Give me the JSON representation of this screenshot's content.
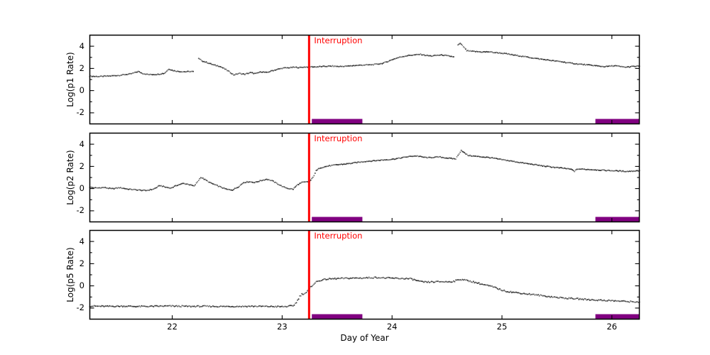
{
  "figure": {
    "xlabel": "Day of Year",
    "xlim": [
      21.25,
      26.25
    ],
    "ylim": [
      -3,
      5
    ],
    "x_ticks": [
      22,
      23,
      24,
      25,
      26
    ],
    "y_major_ticks": [
      -2,
      0,
      2,
      4
    ],
    "y_minor_ticks": [
      -1,
      1,
      3
    ],
    "interruption": {
      "label": "Interruption",
      "day": 23.245
    },
    "bars": [
      [
        23.27,
        23.73
      ],
      [
        25.85,
        26.25
      ]
    ],
    "colors": {
      "data": "#2b2b2b",
      "interruption": "#ff0000",
      "bar": "#800080",
      "frame": "#000000",
      "background": "#ffffff"
    }
  },
  "chart_data": [
    {
      "type": "scatter",
      "title": "",
      "xlabel": "Day of Year",
      "ylabel": "Log(p1 Rate)",
      "xlim": [
        21.25,
        26.25
      ],
      "ylim": [
        -3,
        5
      ],
      "grid": false,
      "legend": null,
      "annotations": [
        "Interruption line at day 23.245",
        "purple data-gap bars 23.27-23.73 and 25.85-26.25"
      ],
      "noise": 0.04,
      "segments": [
        [
          [
            21.25,
            1.3
          ],
          [
            21.33,
            1.27
          ],
          [
            21.42,
            1.31
          ],
          [
            21.52,
            1.38
          ],
          [
            21.62,
            1.5
          ],
          [
            21.69,
            1.72
          ],
          [
            21.73,
            1.55
          ],
          [
            21.79,
            1.44
          ],
          [
            21.87,
            1.47
          ],
          [
            21.93,
            1.57
          ],
          [
            21.97,
            1.95
          ],
          [
            22.01,
            1.8
          ],
          [
            22.06,
            1.72
          ],
          [
            22.12,
            1.7
          ],
          [
            22.19,
            1.73
          ]
        ],
        [
          [
            22.24,
            2.88
          ],
          [
            22.28,
            2.65
          ],
          [
            22.33,
            2.48
          ],
          [
            22.38,
            2.3
          ],
          [
            22.43,
            2.2
          ],
          [
            22.47,
            2.0
          ],
          [
            22.52,
            1.7
          ],
          [
            22.56,
            1.42
          ],
          [
            22.61,
            1.55
          ],
          [
            22.66,
            1.47
          ],
          [
            22.71,
            1.62
          ],
          [
            22.76,
            1.53
          ],
          [
            22.81,
            1.7
          ],
          [
            22.86,
            1.62
          ],
          [
            22.91,
            1.8
          ],
          [
            22.96,
            1.92
          ],
          [
            23.01,
            2.03
          ],
          [
            23.06,
            2.06
          ],
          [
            23.11,
            2.1
          ],
          [
            23.16,
            2.08
          ],
          [
            23.21,
            2.13
          ],
          [
            23.26,
            2.15
          ],
          [
            23.31,
            2.14
          ],
          [
            23.36,
            2.17
          ],
          [
            23.41,
            2.19
          ],
          [
            23.46,
            2.21
          ],
          [
            23.51,
            2.17
          ],
          [
            23.56,
            2.19
          ],
          [
            23.61,
            2.21
          ],
          [
            23.66,
            2.26
          ],
          [
            23.71,
            2.29
          ],
          [
            23.76,
            2.31
          ],
          [
            23.81,
            2.33
          ],
          [
            23.86,
            2.38
          ],
          [
            23.91,
            2.45
          ],
          [
            23.96,
            2.62
          ],
          [
            24.01,
            2.83
          ],
          [
            24.06,
            2.98
          ],
          [
            24.11,
            3.1
          ],
          [
            24.16,
            3.18
          ],
          [
            24.21,
            3.22
          ],
          [
            24.26,
            3.27
          ],
          [
            24.31,
            3.17
          ],
          [
            24.36,
            3.12
          ],
          [
            24.41,
            3.18
          ],
          [
            24.46,
            3.21
          ],
          [
            24.51,
            3.12
          ],
          [
            24.56,
            3.05
          ]
        ],
        [
          [
            24.6,
            4.1
          ],
          [
            24.62,
            4.25
          ],
          [
            24.65,
            3.95
          ],
          [
            24.68,
            3.6
          ],
          [
            24.72,
            3.54
          ],
          [
            24.77,
            3.51
          ],
          [
            24.82,
            3.48
          ],
          [
            24.88,
            3.5
          ],
          [
            24.93,
            3.43
          ],
          [
            24.98,
            3.39
          ],
          [
            25.03,
            3.33
          ],
          [
            25.08,
            3.25
          ],
          [
            25.13,
            3.17
          ],
          [
            25.18,
            3.1
          ],
          [
            25.23,
            3.02
          ],
          [
            25.28,
            2.94
          ],
          [
            25.33,
            2.87
          ],
          [
            25.38,
            2.8
          ],
          [
            25.43,
            2.74
          ],
          [
            25.48,
            2.67
          ],
          [
            25.53,
            2.62
          ],
          [
            25.58,
            2.54
          ],
          [
            25.63,
            2.47
          ],
          [
            25.68,
            2.41
          ],
          [
            25.73,
            2.36
          ],
          [
            25.78,
            2.31
          ],
          [
            25.83,
            2.27
          ],
          [
            25.88,
            2.21
          ],
          [
            25.93,
            2.16
          ],
          [
            25.98,
            2.2
          ],
          [
            26.03,
            2.24
          ],
          [
            26.08,
            2.16
          ],
          [
            26.13,
            2.11
          ],
          [
            26.18,
            2.17
          ],
          [
            26.25,
            2.2
          ]
        ]
      ]
    },
    {
      "type": "scatter",
      "title": "",
      "xlabel": "Day of Year",
      "ylabel": "Log(p2 Rate)",
      "xlim": [
        21.25,
        26.25
      ],
      "ylim": [
        -3,
        5
      ],
      "grid": false,
      "legend": null,
      "annotations": [
        "Interruption line at day 23.245",
        "purple data-gap bars 23.27-23.73 and 25.85-26.25"
      ],
      "noise": 0.04,
      "segments": [
        [
          [
            21.25,
            0.12
          ],
          [
            21.31,
            0.05
          ],
          [
            21.38,
            0.1
          ],
          [
            21.45,
            -0.02
          ],
          [
            21.52,
            0.08
          ],
          [
            21.6,
            -0.05
          ],
          [
            21.68,
            -0.12
          ],
          [
            21.76,
            -0.18
          ],
          [
            21.83,
            -0.05
          ],
          [
            21.89,
            0.28
          ],
          [
            21.94,
            0.12
          ],
          [
            21.99,
            0.05
          ],
          [
            22.05,
            0.32
          ],
          [
            22.1,
            0.46
          ],
          [
            22.15,
            0.38
          ],
          [
            22.2,
            0.22
          ],
          [
            22.26,
            1.02
          ],
          [
            22.3,
            0.8
          ],
          [
            22.35,
            0.5
          ],
          [
            22.4,
            0.3
          ],
          [
            22.45,
            0.1
          ],
          [
            22.5,
            -0.08
          ],
          [
            22.55,
            -0.12
          ],
          [
            22.6,
            0.15
          ],
          [
            22.65,
            0.55
          ],
          [
            22.7,
            0.62
          ],
          [
            22.75,
            0.55
          ],
          [
            22.8,
            0.7
          ],
          [
            22.86,
            0.85
          ],
          [
            22.91,
            0.7
          ],
          [
            22.96,
            0.42
          ],
          [
            23.01,
            0.15
          ],
          [
            23.06,
            0.0
          ],
          [
            23.1,
            -0.05
          ],
          [
            23.14,
            0.35
          ],
          [
            23.18,
            0.55
          ],
          [
            23.22,
            0.6
          ],
          [
            23.25,
            0.63
          ],
          [
            23.28,
            1.0
          ],
          [
            23.31,
            1.6
          ],
          [
            23.34,
            1.85
          ],
          [
            23.38,
            1.95
          ],
          [
            23.43,
            2.05
          ],
          [
            23.48,
            2.12
          ],
          [
            23.53,
            2.18
          ],
          [
            23.58,
            2.22
          ],
          [
            23.63,
            2.28
          ],
          [
            23.68,
            2.35
          ],
          [
            23.73,
            2.42
          ],
          [
            23.78,
            2.47
          ],
          [
            23.83,
            2.5
          ],
          [
            23.88,
            2.55
          ],
          [
            23.93,
            2.59
          ],
          [
            23.98,
            2.62
          ],
          [
            24.03,
            2.68
          ],
          [
            24.08,
            2.76
          ],
          [
            24.13,
            2.85
          ],
          [
            24.18,
            2.92
          ],
          [
            24.23,
            2.94
          ],
          [
            24.28,
            2.84
          ],
          [
            24.33,
            2.78
          ],
          [
            24.38,
            2.82
          ],
          [
            24.43,
            2.85
          ],
          [
            24.48,
            2.78
          ],
          [
            24.53,
            2.72
          ],
          [
            24.58,
            2.68
          ],
          [
            24.61,
            3.15
          ],
          [
            24.63,
            3.45
          ],
          [
            24.66,
            3.2
          ],
          [
            24.69,
            3.0
          ],
          [
            24.74,
            2.93
          ],
          [
            24.79,
            2.88
          ],
          [
            24.84,
            2.84
          ],
          [
            24.89,
            2.79
          ],
          [
            24.94,
            2.71
          ],
          [
            24.99,
            2.62
          ],
          [
            25.04,
            2.55
          ],
          [
            25.09,
            2.47
          ],
          [
            25.14,
            2.39
          ],
          [
            25.19,
            2.31
          ],
          [
            25.24,
            2.24
          ],
          [
            25.29,
            2.17
          ],
          [
            25.34,
            2.09
          ],
          [
            25.39,
            2.02
          ],
          [
            25.44,
            1.96
          ],
          [
            25.49,
            1.9
          ],
          [
            25.54,
            1.85
          ],
          [
            25.59,
            1.8
          ],
          [
            25.63,
            1.73
          ],
          [
            25.66,
            1.57
          ],
          [
            25.69,
            1.77
          ],
          [
            25.74,
            1.74
          ],
          [
            25.79,
            1.72
          ],
          [
            25.84,
            1.7
          ],
          [
            25.89,
            1.67
          ],
          [
            25.94,
            1.64
          ],
          [
            25.99,
            1.62
          ],
          [
            26.04,
            1.6
          ],
          [
            26.09,
            1.57
          ],
          [
            26.14,
            1.55
          ],
          [
            26.19,
            1.58
          ],
          [
            26.25,
            1.62
          ]
        ]
      ]
    },
    {
      "type": "scatter",
      "title": "",
      "xlabel": "Day of Year",
      "ylabel": "Log(p5 Rate)",
      "xlim": [
        21.25,
        26.25
      ],
      "ylim": [
        -3,
        5
      ],
      "grid": false,
      "legend": null,
      "annotations": [
        "Interruption line at day 23.245",
        "purple data-gap bars 23.27-23.73 and 25.85-26.25"
      ],
      "noise": 0.06,
      "segments": [
        [
          [
            21.25,
            -1.82
          ],
          [
            21.4,
            -1.85
          ],
          [
            21.55,
            -1.83
          ],
          [
            21.7,
            -1.86
          ],
          [
            21.85,
            -1.84
          ],
          [
            22.0,
            -1.82
          ],
          [
            22.15,
            -1.85
          ],
          [
            22.3,
            -1.84
          ],
          [
            22.45,
            -1.86
          ],
          [
            22.6,
            -1.85
          ],
          [
            22.75,
            -1.84
          ],
          [
            22.9,
            -1.86
          ],
          [
            23.0,
            -1.88
          ],
          [
            23.05,
            -1.85
          ],
          [
            23.1,
            -1.8
          ],
          [
            23.13,
            -1.5
          ],
          [
            23.16,
            -0.95
          ],
          [
            23.18,
            -0.75
          ],
          [
            23.2,
            -0.7
          ],
          [
            23.22,
            -0.6
          ],
          [
            23.25,
            -0.25
          ],
          [
            23.28,
            0.1
          ],
          [
            23.31,
            0.35
          ],
          [
            23.35,
            0.5
          ],
          [
            23.4,
            0.6
          ],
          [
            23.46,
            0.64
          ],
          [
            23.53,
            0.66
          ],
          [
            23.6,
            0.69
          ],
          [
            23.67,
            0.7
          ],
          [
            23.74,
            0.71
          ],
          [
            23.81,
            0.74
          ],
          [
            23.87,
            0.75
          ],
          [
            23.93,
            0.71
          ],
          [
            23.99,
            0.69
          ],
          [
            24.05,
            0.67
          ],
          [
            24.11,
            0.66
          ],
          [
            24.17,
            0.64
          ],
          [
            24.21,
            0.52
          ],
          [
            24.26,
            0.37
          ],
          [
            24.32,
            0.33
          ],
          [
            24.38,
            0.36
          ],
          [
            24.44,
            0.38
          ],
          [
            24.5,
            0.36
          ],
          [
            24.56,
            0.4
          ],
          [
            24.61,
            0.56
          ],
          [
            24.64,
            0.58
          ],
          [
            24.68,
            0.48
          ],
          [
            24.72,
            0.4
          ],
          [
            24.77,
            0.28
          ],
          [
            24.82,
            0.14
          ],
          [
            24.87,
            0.03
          ],
          [
            24.92,
            -0.1
          ],
          [
            24.97,
            -0.28
          ],
          [
            25.02,
            -0.45
          ],
          [
            25.07,
            -0.53
          ],
          [
            25.12,
            -0.6
          ],
          [
            25.17,
            -0.66
          ],
          [
            25.22,
            -0.72
          ],
          [
            25.28,
            -0.78
          ],
          [
            25.34,
            -0.85
          ],
          [
            25.4,
            -0.93
          ],
          [
            25.46,
            -1.0
          ],
          [
            25.52,
            -1.06
          ],
          [
            25.58,
            -1.11
          ],
          [
            25.64,
            -1.14
          ],
          [
            25.7,
            -1.18
          ],
          [
            25.76,
            -1.22
          ],
          [
            25.82,
            -1.26
          ],
          [
            25.88,
            -1.29
          ],
          [
            25.94,
            -1.31
          ],
          [
            26.0,
            -1.34
          ],
          [
            26.06,
            -1.37
          ],
          [
            26.12,
            -1.4
          ],
          [
            26.18,
            -1.43
          ],
          [
            26.25,
            -1.46
          ]
        ]
      ]
    }
  ]
}
